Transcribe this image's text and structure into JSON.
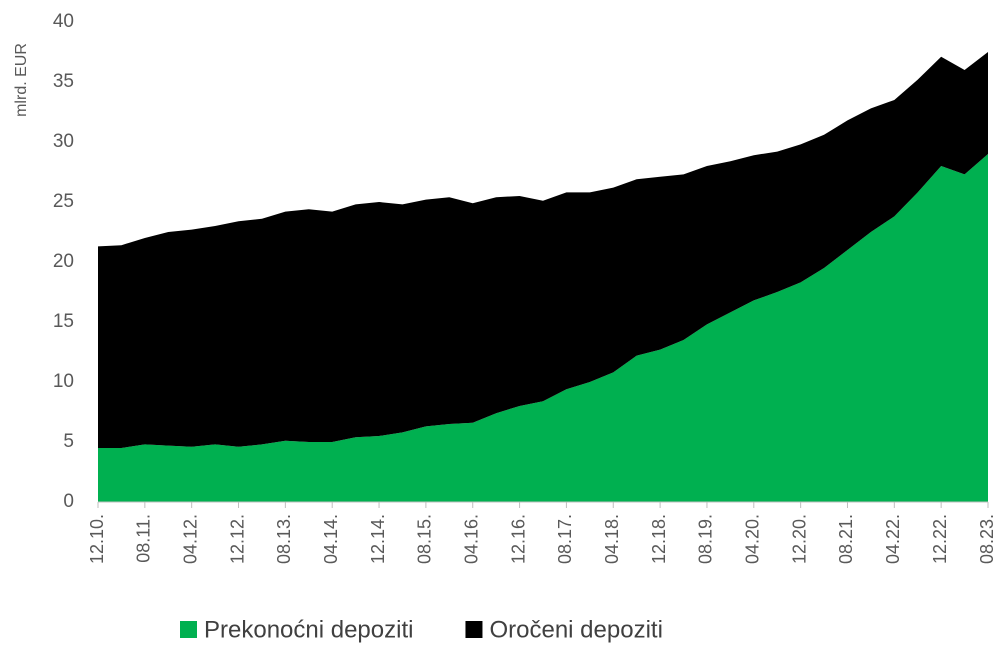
{
  "chart_data": {
    "type": "stacked_area",
    "y_label": "mlrd. EUR",
    "categories": [
      "12.10.",
      null,
      "08.11.",
      null,
      "04.12.",
      null,
      "12.12.",
      null,
      "08.13.",
      null,
      "04.14.",
      null,
      "12.14.",
      null,
      "08.15.",
      null,
      "04.16.",
      null,
      "12.16.",
      null,
      "08.17.",
      null,
      "04.18.",
      null,
      "12.18.",
      null,
      "08.19.",
      null,
      "04.20.",
      null,
      "12.20.",
      null,
      "08.21.",
      null,
      "04.22.",
      null,
      "12.22.",
      null,
      "08.23."
    ],
    "series": [
      {
        "name": "Prekonoćni depoziti",
        "color": "#00b050",
        "values": [
          4.5,
          4.5,
          4.8,
          4.7,
          4.6,
          4.8,
          4.6,
          4.8,
          5.1,
          5.0,
          5.0,
          5.4,
          5.5,
          5.8,
          6.3,
          6.5,
          6.6,
          7.4,
          8.0,
          8.4,
          9.4,
          10.0,
          10.8,
          12.2,
          12.7,
          13.5,
          14.8,
          15.8,
          16.8,
          17.5,
          18.3,
          19.5,
          21.0,
          22.5,
          23.8,
          25.8,
          28.0,
          27.3,
          29.0
        ]
      },
      {
        "name": "Oročeni depoziti",
        "color": "#000000",
        "values": [
          16.8,
          16.9,
          17.2,
          17.8,
          18.1,
          18.2,
          18.8,
          18.8,
          19.1,
          19.4,
          19.2,
          19.4,
          19.5,
          19.0,
          18.9,
          18.9,
          18.3,
          18.0,
          17.5,
          16.7,
          16.4,
          15.8,
          15.4,
          14.7,
          14.4,
          13.8,
          13.2,
          12.6,
          12.1,
          11.7,
          11.5,
          11.1,
          10.8,
          10.3,
          9.7,
          9.4,
          9.1,
          8.7,
          8.5
        ]
      }
    ],
    "ylim": [
      0,
      40
    ],
    "yticks": [
      0,
      5,
      10,
      15,
      20,
      25,
      30,
      35,
      40
    ],
    "legend": "bottom"
  }
}
